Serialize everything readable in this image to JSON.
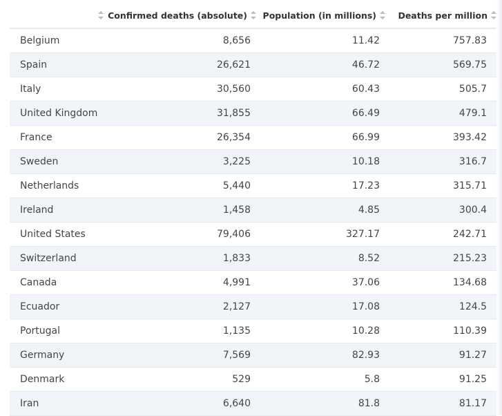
{
  "chart_data": {
    "type": "table",
    "columns": [
      "",
      "Confirmed deaths (absolute)",
      "Population (in millions)",
      "Deaths per million"
    ],
    "rows": [
      {
        "country": "Belgium",
        "deaths": "8,656",
        "population": "11.42",
        "per_million": "757.83"
      },
      {
        "country": "Spain",
        "deaths": "26,621",
        "population": "46.72",
        "per_million": "569.75"
      },
      {
        "country": "Italy",
        "deaths": "30,560",
        "population": "60.43",
        "per_million": "505.7"
      },
      {
        "country": "United Kingdom",
        "deaths": "31,855",
        "population": "66.49",
        "per_million": "479.1"
      },
      {
        "country": "France",
        "deaths": "26,354",
        "population": "66.99",
        "per_million": "393.42"
      },
      {
        "country": "Sweden",
        "deaths": "3,225",
        "population": "10.18",
        "per_million": "316.7"
      },
      {
        "country": "Netherlands",
        "deaths": "5,440",
        "population": "17.23",
        "per_million": "315.71"
      },
      {
        "country": "Ireland",
        "deaths": "1,458",
        "population": "4.85",
        "per_million": "300.4"
      },
      {
        "country": "United States",
        "deaths": "79,406",
        "population": "327.17",
        "per_million": "242.71"
      },
      {
        "country": "Switzerland",
        "deaths": "1,833",
        "population": "8.52",
        "per_million": "215.23"
      },
      {
        "country": "Canada",
        "deaths": "4,991",
        "population": "37.06",
        "per_million": "134.68"
      },
      {
        "country": "Ecuador",
        "deaths": "2,127",
        "population": "17.08",
        "per_million": "124.5"
      },
      {
        "country": "Portugal",
        "deaths": "1,135",
        "population": "10.28",
        "per_million": "110.39"
      },
      {
        "country": "Germany",
        "deaths": "7,569",
        "population": "82.93",
        "per_million": "91.27"
      },
      {
        "country": "Denmark",
        "deaths": "529",
        "population": "5.8",
        "per_million": "91.25"
      },
      {
        "country": "Iran",
        "deaths": "6,640",
        "population": "81.8",
        "per_million": "81.17"
      }
    ]
  },
  "icons": {
    "sort": "sort-icon"
  },
  "colors": {
    "alt_row": "#f1f5fa",
    "border": "#e6e9ed",
    "sort_icon": "#b8bcc2"
  }
}
